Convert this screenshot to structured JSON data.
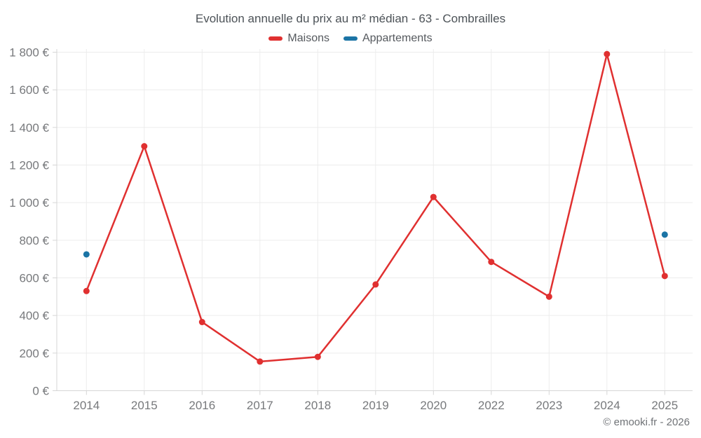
{
  "title": "Evolution annuelle du prix au m² médian - 63 - Combrailles",
  "legend": {
    "items": [
      {
        "label": "Maisons",
        "color": "#e03030"
      },
      {
        "label": "Appartements",
        "color": "#1b74a5"
      }
    ]
  },
  "footer": {
    "copyright": "© emooki.fr - 2026"
  },
  "colors": {
    "maisons": "#e03030",
    "appartements": "#1b74a5",
    "gridline": "#ececec",
    "axis": "#d6d6d6",
    "tick_label": "#77797c"
  },
  "chart_data": {
    "type": "line",
    "title": "Evolution annuelle du prix au m² médian - 63 - Combrailles",
    "categories": [
      "2014",
      "2015",
      "2016",
      "2017",
      "2018",
      "2019",
      "2020",
      "2022",
      "2023",
      "2024",
      "2025"
    ],
    "series": [
      {
        "name": "Maisons",
        "color": "#e03030",
        "style": "line+markers",
        "values": [
          530,
          1300,
          365,
          155,
          180,
          565,
          1030,
          685,
          500,
          1790,
          610
        ]
      },
      {
        "name": "Appartements",
        "color": "#1b74a5",
        "style": "markers",
        "values": [
          725,
          null,
          null,
          null,
          null,
          null,
          null,
          null,
          null,
          null,
          830
        ]
      }
    ],
    "xlabel": "",
    "ylabel": "",
    "ylim": [
      0,
      1800
    ],
    "ytick_step": 200,
    "ytick_suffix": "€",
    "grid": true,
    "legend_position": "top"
  }
}
